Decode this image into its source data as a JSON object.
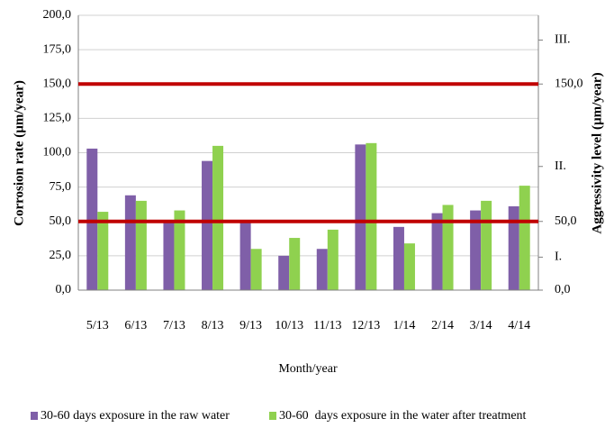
{
  "chart_data": {
    "type": "bar",
    "categories": [
      "5/13",
      "6/13",
      "7/13",
      "8/13",
      "9/13",
      "10/13",
      "11/13",
      "12/13",
      "1/14",
      "2/14",
      "3/14",
      "4/14"
    ],
    "series": [
      {
        "name": "30-60 days exposure in the raw water",
        "color": "#7f5fa8",
        "values": [
          103,
          69,
          50,
          94,
          49,
          25,
          30,
          106,
          46,
          56,
          58,
          61
        ]
      },
      {
        "name": "30-60  days exposure in the water after treatment",
        "color": "#8fd14f",
        "values": [
          57,
          65,
          58,
          105,
          30,
          38,
          44,
          107,
          34,
          62,
          65,
          76
        ]
      }
    ],
    "ylabel": "Corrosion rate (µm/year)",
    "y2label": "Aggressivity level (µm/year)",
    "xlabel": "Month/year",
    "ylim": [
      0,
      200
    ],
    "yticks": [
      {
        "value": 0,
        "label": "0,0"
      },
      {
        "value": 25,
        "label": "25,0"
      },
      {
        "value": 50,
        "label": "50,0"
      },
      {
        "value": 75,
        "label": "75,0"
      },
      {
        "value": 100,
        "label": "100,0"
      },
      {
        "value": 125,
        "label": "125,0"
      },
      {
        "value": 150,
        "label": "150,0"
      },
      {
        "value": 175,
        "label": "175,0"
      },
      {
        "value": 200,
        "label": "200,0"
      }
    ],
    "y2lim": [
      0,
      200
    ],
    "y2ticks": [
      {
        "value": 0,
        "label": "0,0"
      },
      {
        "value": 24,
        "label": "I."
      },
      {
        "value": 50,
        "label": "50,0"
      },
      {
        "value": 90,
        "label": "II."
      },
      {
        "value": 150,
        "label": "150,0"
      },
      {
        "value": 182,
        "label": "III."
      }
    ],
    "threshold_lines": [
      50,
      150
    ],
    "threshold_color": "#c00000",
    "grid": true
  }
}
